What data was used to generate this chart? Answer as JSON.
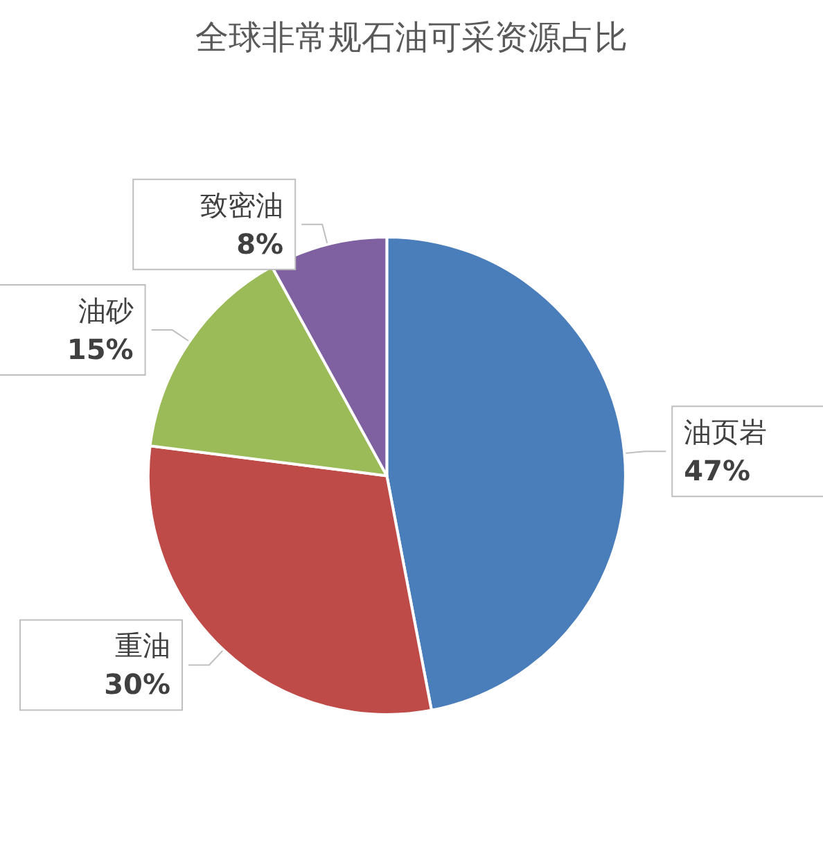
{
  "chart_data": {
    "type": "pie",
    "title": "全球非常规石油可采资源占比",
    "categories": [
      "油页岩",
      "重油",
      "油砂",
      "致密油"
    ],
    "values": [
      47,
      30,
      15,
      8
    ],
    "value_labels": [
      "47%",
      "30%",
      "15%",
      "8%"
    ],
    "colors": [
      "#4a7ebb",
      "#be4b48",
      "#9bbb59",
      "#7f60a0"
    ],
    "legend": false
  }
}
